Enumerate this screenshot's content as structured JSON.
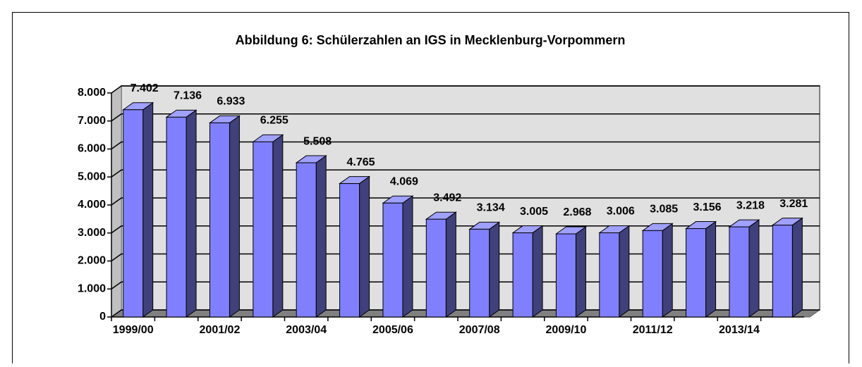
{
  "chart_data": {
    "type": "bar3d",
    "title": "Abbildung 6: Schülerzahlen an IGS in Mecklenburg-Vorpommern",
    "categories": [
      "1999/00",
      null,
      "2001/02",
      null,
      "2003/04",
      null,
      "2005/06",
      null,
      "2007/08",
      null,
      "2009/10",
      null,
      "2011/12",
      null,
      "2013/14",
      null
    ],
    "values": [
      7402,
      7136,
      6933,
      6255,
      5508,
      4765,
      4069,
      3492,
      3134,
      3005,
      2968,
      3006,
      3085,
      3156,
      3218,
      3281
    ],
    "value_labels": [
      "7.402",
      "7.136",
      "6.933",
      "6.255",
      "5.508",
      "4.765",
      "4.069",
      "3.492",
      "3.134",
      "3.005",
      "2.968",
      "3.006",
      "3.085",
      "3.156",
      "3.218",
      "3.281"
    ],
    "color": "#8080ff",
    "ylim": [
      0,
      8000
    ],
    "yticks": [
      0,
      {
        "value": 1000,
        "label": "1.000"
      },
      {
        "value": 2000,
        "label": "2.000"
      },
      {
        "value": 3000,
        "label": "3.000"
      },
      {
        "value": 4000,
        "label": "4.000"
      },
      {
        "value": 5000,
        "label": "5.000"
      },
      {
        "value": 6000,
        "label": "6.000"
      },
      {
        "value": 7000,
        "label": "7.000"
      },
      {
        "value": 8000,
        "label": "8.000"
      }
    ],
    "grid": true
  }
}
